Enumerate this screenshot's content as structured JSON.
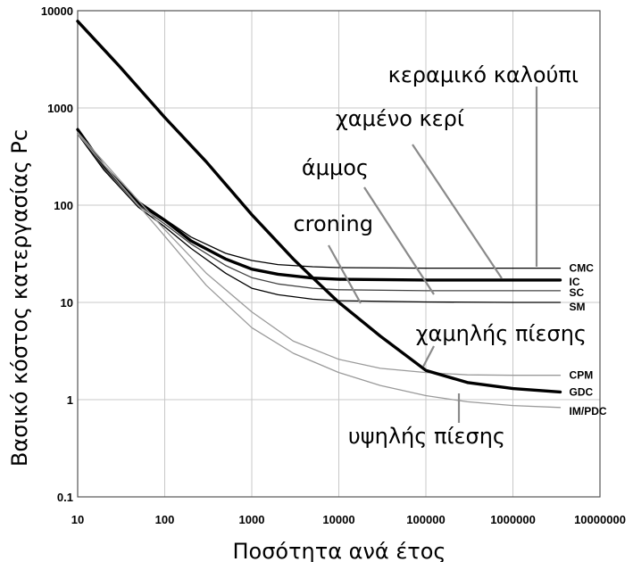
{
  "chart_data": {
    "type": "line",
    "xlabel": "Ποσότητα ανά έτος",
    "ylabel": "Βασικό κόστος κατεργασίας Pc",
    "xscale": "log",
    "yscale": "log",
    "xlim": [
      10,
      10000000
    ],
    "ylim": [
      0.1,
      10000
    ],
    "grid": true,
    "xticks": [
      "10",
      "100",
      "1000",
      "10000",
      "100000",
      "1000000",
      "10000000"
    ],
    "yticks": [
      "0.1",
      "1",
      "10",
      "100",
      "1000",
      "10000"
    ],
    "series": [
      {
        "name": "CMC",
        "color": "#000000",
        "width": 1.3,
        "x": [
          10,
          20,
          50,
          100,
          200,
          500,
          1000,
          2000,
          5000,
          10000,
          100000,
          1000000,
          3500000
        ],
        "y": [
          560,
          245,
          110,
          72,
          47,
          32,
          27,
          24.5,
          23.3,
          22.8,
          22.5,
          22.5,
          22.5
        ]
      },
      {
        "name": "IC",
        "color": "#000000",
        "width": 3.4,
        "x": [
          10,
          20,
          50,
          100,
          200,
          500,
          1000,
          2000,
          5000,
          10000,
          100000,
          1000000,
          3500000
        ],
        "y": [
          600,
          250,
          105,
          70,
          43,
          28,
          22,
          19.5,
          17.8,
          17.3,
          17,
          17,
          17
        ]
      },
      {
        "name": "SC",
        "color": "#444444",
        "width": 1.3,
        "x": [
          10,
          20,
          50,
          100,
          200,
          500,
          1000,
          2000,
          5000,
          10000,
          100000,
          1000000,
          3500000
        ],
        "y": [
          550,
          240,
          100,
          64,
          40,
          24,
          18,
          15.5,
          14,
          13.5,
          13.2,
          13.2,
          13.2
        ]
      },
      {
        "name": "SM",
        "color": "#000000",
        "width": 1.3,
        "x": [
          10,
          20,
          50,
          100,
          200,
          500,
          1000,
          2000,
          5000,
          10000,
          100000,
          1000000,
          3500000
        ],
        "y": [
          540,
          230,
          95,
          60,
          36,
          20,
          14,
          12,
          10.8,
          10.4,
          10.1,
          10,
          10
        ]
      },
      {
        "name": "CPM",
        "color": "#9a9a9a",
        "width": 1.3,
        "x": [
          10,
          30,
          100,
          300,
          1000,
          3000,
          10000,
          30000,
          100000,
          300000,
          1000000,
          3500000
        ],
        "y": [
          560,
          185,
          56,
          20,
          8,
          4,
          2.6,
          2.1,
          1.9,
          1.8,
          1.78,
          1.78
        ]
      },
      {
        "name": "GDC",
        "color": "#000000",
        "width": 3.4,
        "x": [
          10,
          30,
          100,
          300,
          1000,
          3000,
          5000,
          10000,
          30000,
          100000,
          300000,
          1000000,
          3500000
        ],
        "y": [
          7800,
          2700,
          800,
          280,
          80,
          28,
          18,
          10,
          4.5,
          2,
          1.5,
          1.3,
          1.2
        ]
      },
      {
        "name": "IM/PDC",
        "color": "#9a9a9a",
        "width": 1.3,
        "x": [
          10,
          30,
          100,
          300,
          1000,
          3000,
          10000,
          30000,
          100000,
          300000,
          1000000,
          3500000
        ],
        "y": [
          540,
          170,
          48,
          15,
          5.5,
          3,
          1.9,
          1.4,
          1.1,
          0.95,
          0.87,
          0.83
        ]
      }
    ],
    "annotations": [
      {
        "text": "κεραμικό καλούπι",
        "points_to": "CMC"
      },
      {
        "text": "χαμένο κερί",
        "points_to": "IC"
      },
      {
        "text": "άμμος",
        "points_to": "SC"
      },
      {
        "text": "croning",
        "points_to": "SM"
      },
      {
        "text": "χαμηλής πίεσης",
        "points_to": "GDC"
      },
      {
        "text": "υψηλής πίεσης",
        "points_to": "IM/PDC"
      }
    ]
  }
}
